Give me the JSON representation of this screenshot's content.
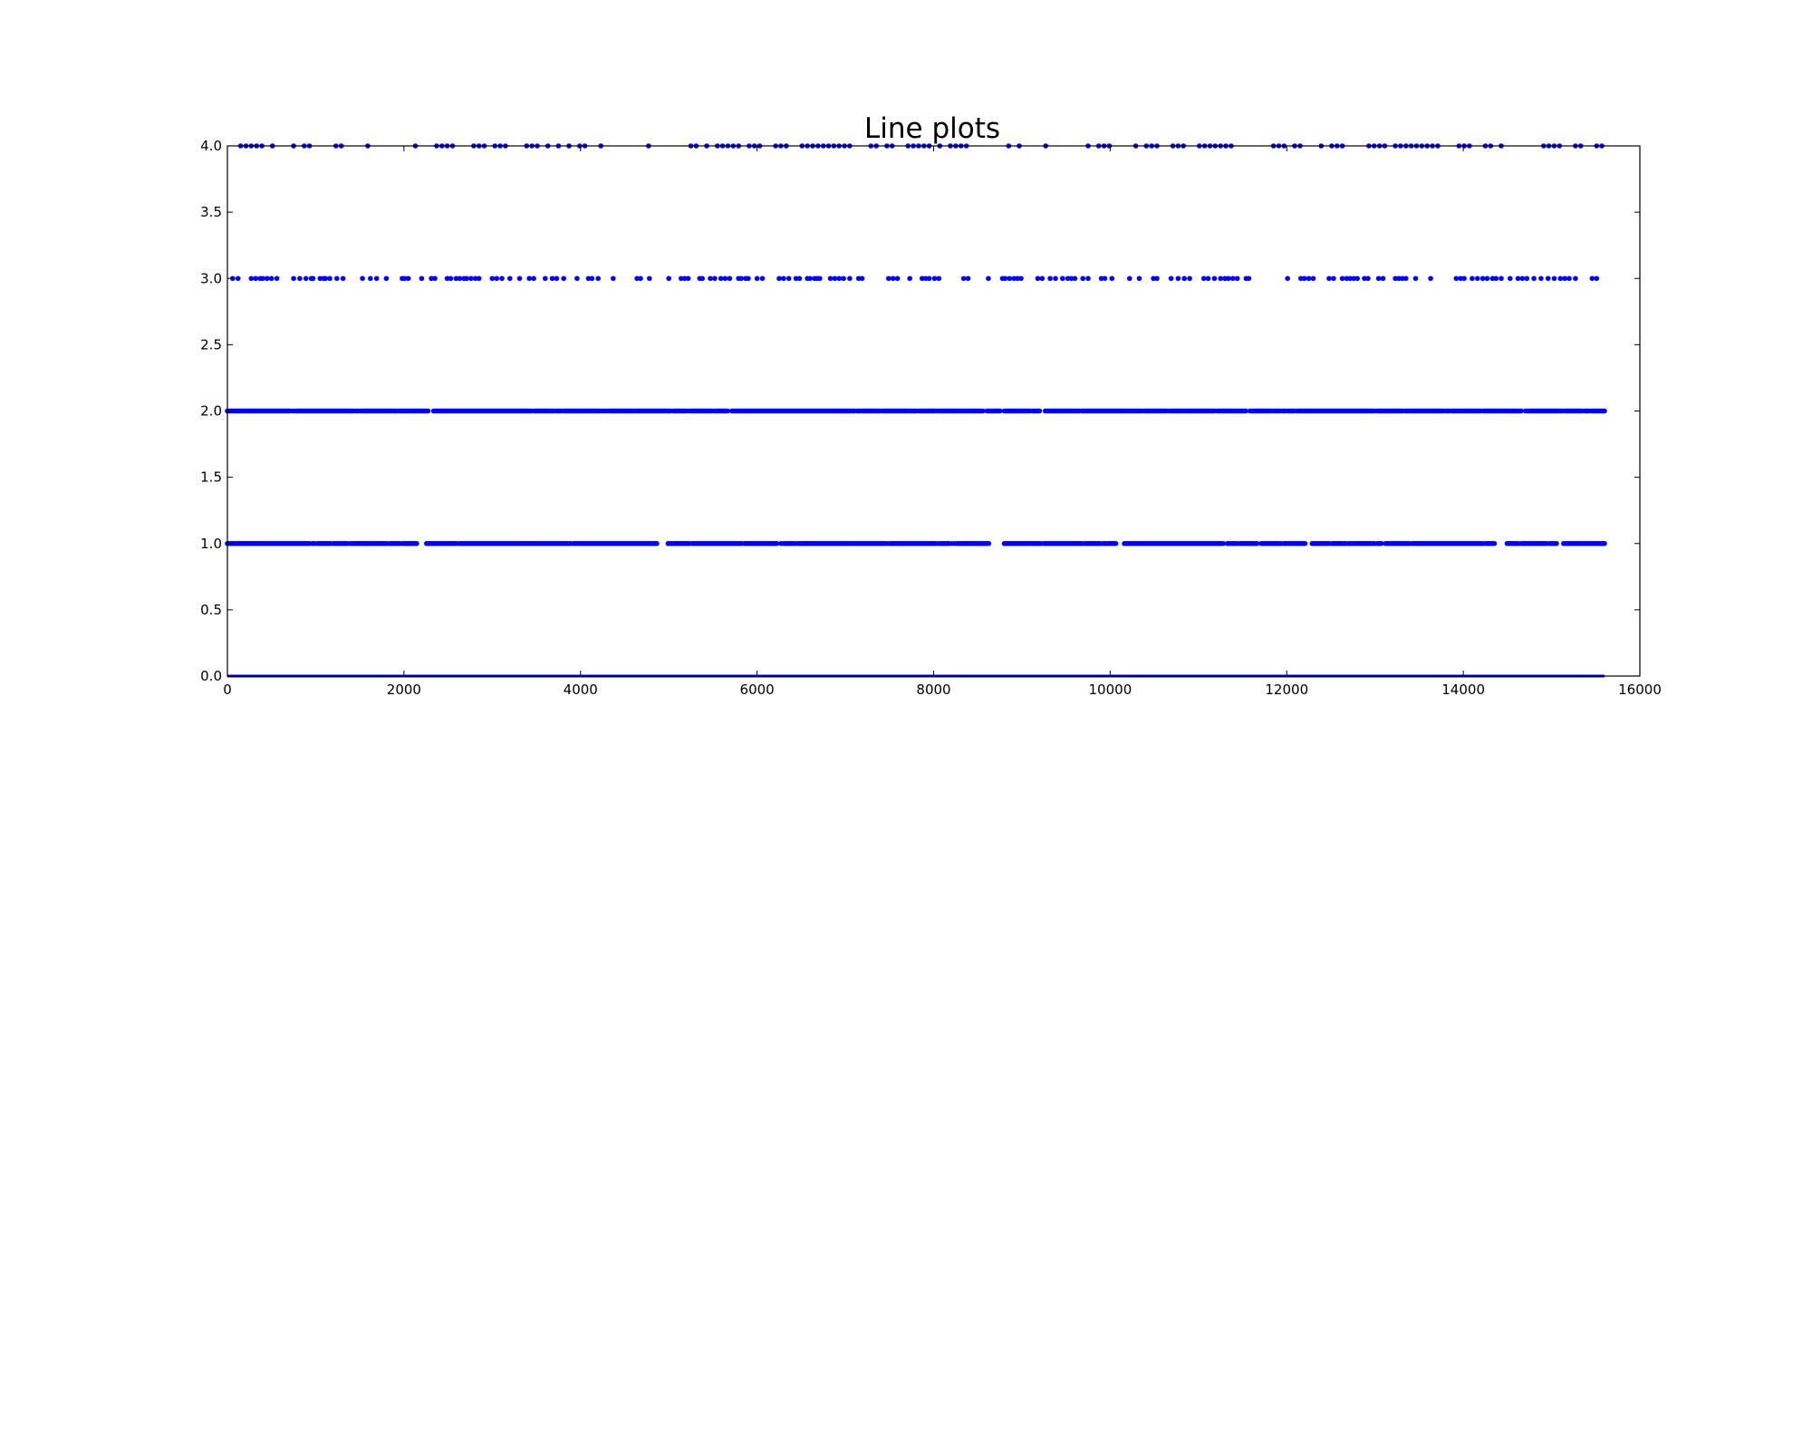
{
  "chart_data": {
    "type": "scatter",
    "title": "Line plots",
    "xlabel": "",
    "ylabel": "",
    "xlim": [
      0,
      16000
    ],
    "ylim": [
      0.0,
      4.0
    ],
    "x_ticks": [
      "0",
      "2000",
      "4000",
      "6000",
      "8000",
      "10000",
      "12000",
      "14000",
      "16000"
    ],
    "y_ticks": [
      "0.0",
      "0.5",
      "1.0",
      "1.5",
      "2.0",
      "2.5",
      "3.0",
      "3.5",
      "4.0"
    ],
    "grid": false,
    "legend": "none",
    "series_color": "#0000ff",
    "n_points": 15600,
    "levels": [
      {
        "y": 0.0,
        "x_range": [
          0,
          15600
        ],
        "appearance": "continuous",
        "gaps": []
      },
      {
        "y": 1.0,
        "x_range": [
          0,
          15600
        ],
        "appearance": "dense",
        "gaps": [
          [
            2150,
            2250
          ],
          [
            4870,
            4990
          ],
          [
            6230,
            6270
          ],
          [
            8650,
            8790
          ],
          [
            10080,
            10150
          ],
          [
            11290,
            11320
          ],
          [
            12210,
            12280
          ],
          [
            14360,
            14480
          ],
          [
            15070,
            15120
          ]
        ]
      },
      {
        "y": 2.0,
        "x_range": [
          0,
          15600
        ],
        "appearance": "dense",
        "gaps": [
          [
            2280,
            2320
          ],
          [
            5680,
            5700
          ],
          [
            8570,
            8600
          ],
          [
            9210,
            9250
          ],
          [
            11540,
            11580
          ],
          [
            12090,
            12110
          ],
          [
            14660,
            14700
          ]
        ]
      },
      {
        "y": 3.0,
        "x": [
          60,
          120,
          270,
          320,
          370,
          400,
          450,
          500,
          560,
          750,
          820,
          890,
          950,
          970,
          1050,
          1090,
          1110,
          1160,
          1240,
          1310,
          1530,
          1620,
          1690,
          1800,
          1980,
          2010,
          2050,
          2200,
          2310,
          2350,
          2490,
          2530,
          2590,
          2630,
          2680,
          2710,
          2760,
          2810,
          2850,
          3000,
          3050,
          3110,
          3200,
          3310,
          3420,
          3470,
          3600,
          3680,
          3730,
          3810,
          3960,
          4090,
          4130,
          4200,
          4370,
          4640,
          4680,
          4780,
          5000,
          5140,
          5180,
          5220,
          5350,
          5380,
          5470,
          5520,
          5590,
          5640,
          5690,
          5790,
          5820,
          5870,
          5900,
          6000,
          6060,
          6250,
          6300,
          6360,
          6440,
          6480,
          6570,
          6600,
          6650,
          6680,
          6710,
          6830,
          6880,
          6930,
          6980,
          7050,
          7150,
          7190,
          7490,
          7540,
          7590,
          7730,
          7870,
          7910,
          7950,
          8010,
          8060,
          8340,
          8390,
          8620,
          8780,
          8810,
          8860,
          8910,
          8950,
          8990,
          9180,
          9230,
          9320,
          9380,
          9460,
          9520,
          9560,
          9600,
          9690,
          9750,
          9900,
          9940,
          10020,
          10220,
          10330,
          10490,
          10530,
          10690,
          10770,
          10840,
          10900,
          11060,
          11110,
          11180,
          11250,
          11300,
          11340,
          11390,
          11440,
          11540,
          11570,
          12010,
          12160,
          12200,
          12250,
          12300,
          12480,
          12530,
          12630,
          12680,
          12720,
          12760,
          12800,
          12880,
          12920,
          13040,
          13090,
          13230,
          13270,
          13310,
          13350,
          13460,
          13630,
          13920,
          13970,
          14010,
          14100,
          14160,
          14220,
          14270,
          14330,
          14370,
          14430,
          14530,
          14620,
          14670,
          14720,
          14800,
          14880,
          14960,
          15030,
          15100,
          15150,
          15200,
          15270,
          15460,
          15510
        ]
      },
      {
        "y": 4.0,
        "x_range": [
          150,
          15600
        ],
        "appearance": "sparse",
        "gaps": [
          [
            560,
            720
          ],
          [
            1350,
            1500
          ],
          [
            1700,
            2100
          ],
          [
            2250,
            2350
          ],
          [
            4330,
            4600
          ],
          [
            4800,
            5220
          ],
          [
            6360,
            6480
          ],
          [
            7070,
            7230
          ],
          [
            7550,
            7600
          ],
          [
            8550,
            8780
          ],
          [
            9130,
            9200
          ],
          [
            9420,
            9600
          ],
          [
            10880,
            10970
          ],
          [
            11380,
            11520
          ],
          [
            11600,
            11770
          ],
          [
            12190,
            12310
          ],
          [
            12690,
            12810
          ],
          [
            14490,
            14620
          ],
          [
            14730,
            14860
          ]
        ]
      }
    ]
  }
}
